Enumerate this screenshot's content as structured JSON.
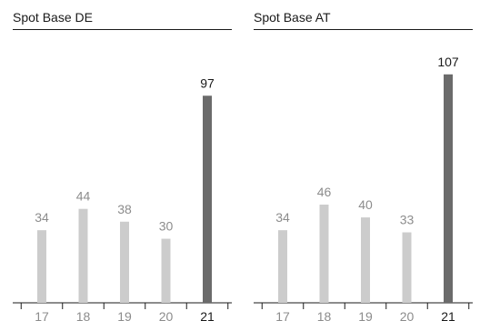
{
  "chart_data": [
    {
      "type": "bar",
      "title": "Spot Base DE",
      "categories": [
        "17",
        "18",
        "19",
        "20",
        "21"
      ],
      "values": [
        34,
        44,
        38,
        30,
        97
      ],
      "xlabel": "",
      "ylabel": "",
      "ylim": [
        0,
        115
      ],
      "grid": false,
      "highlight_index": 4,
      "colors": {
        "bar": "#cccccc",
        "bar_highlight": "#6b6b6b",
        "label": "#8c8c8c",
        "label_highlight": "#1a1a1a",
        "axis": "#1a1a1a"
      }
    },
    {
      "type": "bar",
      "title": "Spot Base AT",
      "categories": [
        "17",
        "18",
        "19",
        "20",
        "21"
      ],
      "values": [
        34,
        46,
        40,
        33,
        107
      ],
      "xlabel": "",
      "ylabel": "",
      "ylim": [
        0,
        115
      ],
      "grid": false,
      "highlight_index": 4,
      "colors": {
        "bar": "#cccccc",
        "bar_highlight": "#6b6b6b",
        "label": "#8c8c8c",
        "label_highlight": "#1a1a1a",
        "axis": "#1a1a1a"
      }
    }
  ]
}
